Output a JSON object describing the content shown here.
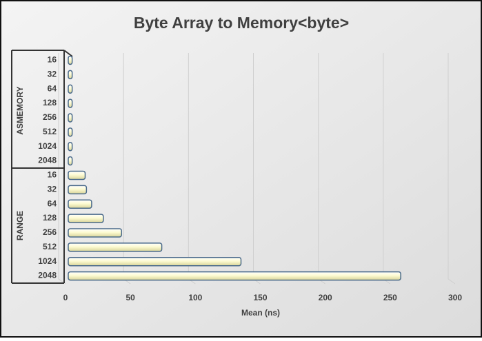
{
  "chart_data": {
    "type": "bar",
    "title": "Byte Array to Memory<byte>",
    "x_axis_label": "Mean (ns)",
    "groups": [
      {
        "name": "ASMEMORY",
        "categories": [
          "16",
          "32",
          "64",
          "128",
          "256",
          "512",
          "1024",
          "2048"
        ],
        "values": [
          3,
          3,
          3,
          3,
          3,
          3,
          3,
          3
        ]
      },
      {
        "name": "RANGE",
        "categories": [
          "16",
          "32",
          "64",
          "128",
          "256",
          "512",
          "1024",
          "2048"
        ],
        "values": [
          13,
          14,
          18,
          27,
          41,
          72,
          133,
          256
        ]
      }
    ],
    "color": "#fdfbd2",
    "xlim": [
      0,
      300
    ],
    "xticks": [
      0,
      50,
      100,
      150,
      200,
      250,
      300
    ],
    "grid": true
  }
}
